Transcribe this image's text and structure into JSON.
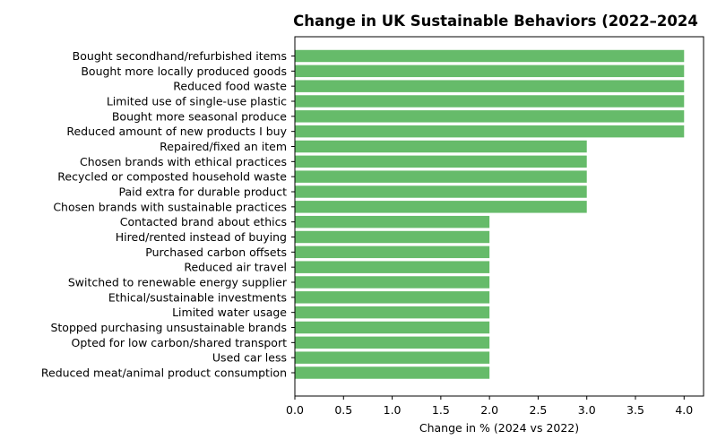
{
  "chart_data": {
    "type": "bar",
    "orientation": "horizontal",
    "title": "Change in UK Sustainable Behaviors (2022–2024",
    "xlabel": "Change in % (2024 vs 2022)",
    "ylabel": "",
    "xlim": [
      0,
      4.2
    ],
    "xticks": [
      "0.0",
      "0.5",
      "1.0",
      "1.5",
      "2.0",
      "2.5",
      "3.0",
      "3.5",
      "4.0"
    ],
    "grid": false,
    "bar_color": "#66bb6a",
    "categories": [
      "Bought secondhand/refurbished items",
      "Bought more locally produced goods",
      "Reduced food waste",
      "Limited use of single-use plastic",
      "Bought more seasonal produce",
      "Reduced amount of new products I buy",
      "Repaired/fixed an item",
      "Chosen brands with ethical practices",
      "Recycled or composted household waste",
      "Paid extra for durable product",
      "Chosen brands with sustainable practices",
      "Contacted brand about ethics",
      "Hired/rented instead of buying",
      "Purchased carbon offsets",
      "Reduced air travel",
      "Switched to renewable energy supplier",
      "Ethical/sustainable investments",
      "Limited water usage",
      "Stopped purchasing unsustainable brands",
      "Opted for low carbon/shared transport",
      "Used car less",
      "Reduced meat/animal product consumption"
    ],
    "values": [
      4,
      4,
      4,
      4,
      4,
      4,
      3,
      3,
      3,
      3,
      3,
      2,
      2,
      2,
      2,
      2,
      2,
      2,
      2,
      2,
      2,
      2
    ]
  }
}
